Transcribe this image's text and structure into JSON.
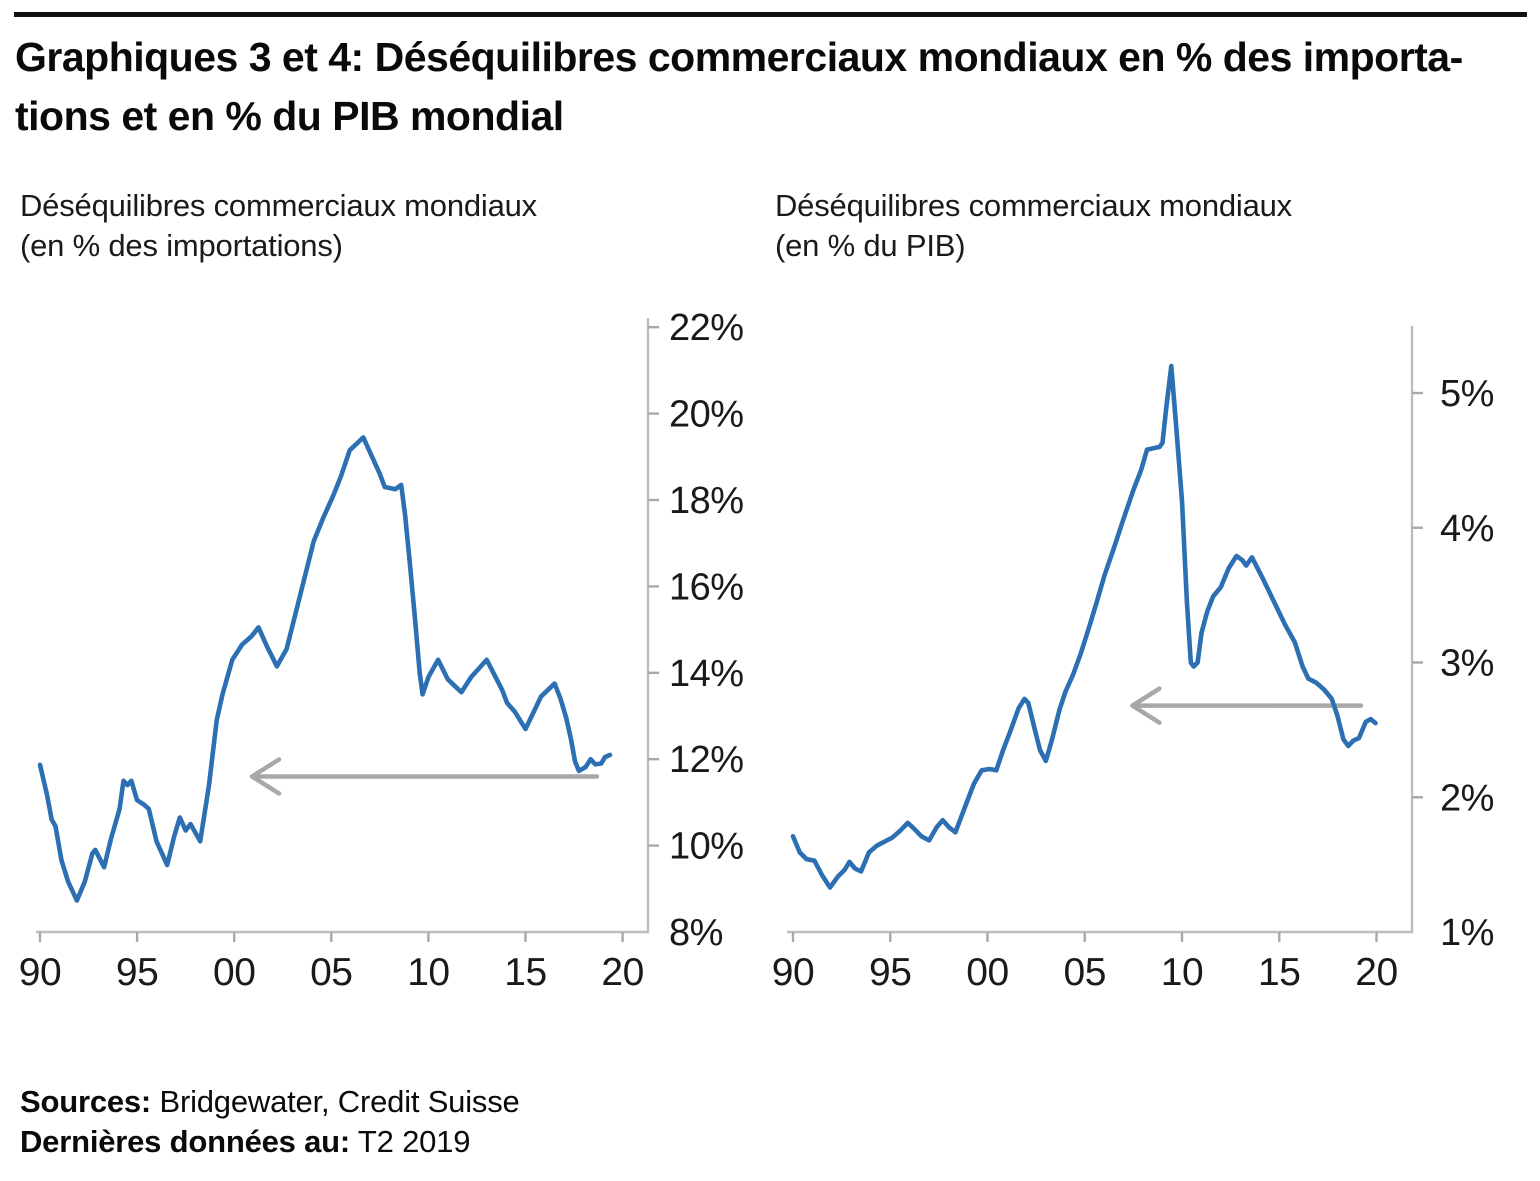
{
  "header": {
    "title_line1": "Graphiques 3 et 4: Déséquilibres commerciaux mondiaux en % des importa-",
    "title_line2": "tions et en % du PIB mondial"
  },
  "footer": {
    "sources_label": "Sources:",
    "sources_value": " Bridgewater, Credit Suisse",
    "last_data_label": "Dernières données au:",
    "last_data_value": " T2 2019"
  },
  "colors": {
    "line": "#2c6fb2",
    "axis": "#bdbdbd",
    "tick": "#a9a9a9",
    "arrow": "#a8a8a8",
    "label": "#1a1a1a"
  },
  "chart_data": [
    {
      "type": "line",
      "title_line1": "Déséquilibres commerciaux mondiaux",
      "title_line2": "(en % des importations)",
      "unit": "%",
      "xlim": [
        1990,
        2021.3
      ],
      "ylim": [
        8,
        22
      ],
      "x_tick_years": [
        1990,
        1995,
        2000,
        2005,
        2010,
        2015,
        2020
      ],
      "x_tick_labels": [
        "90",
        "95",
        "00",
        "05",
        "10",
        "15",
        "20"
      ],
      "y_tick_values": [
        22,
        20,
        18,
        16,
        14,
        12,
        10,
        8
      ],
      "y_tick_labels": [
        "22%",
        "20%",
        "18%",
        "16%",
        "14%",
        "12%",
        "10%",
        "8%"
      ],
      "grid": false,
      "legend": "none",
      "arrow": {
        "value": 11.6,
        "tail_year": 2018.68,
        "tip_year": 2000.92,
        "direction": "left"
      },
      "points": [
        [
          1990.0,
          11.87
        ],
        [
          1990.35,
          11.2
        ],
        [
          1990.6,
          10.6
        ],
        [
          1990.8,
          10.45
        ],
        [
          1991.1,
          9.67
        ],
        [
          1991.45,
          9.16
        ],
        [
          1991.9,
          8.73
        ],
        [
          1992.3,
          9.16
        ],
        [
          1992.7,
          9.82
        ],
        [
          1992.85,
          9.9
        ],
        [
          1993.3,
          9.5
        ],
        [
          1993.65,
          10.15
        ],
        [
          1994.1,
          10.85
        ],
        [
          1994.3,
          11.5
        ],
        [
          1994.5,
          11.4
        ],
        [
          1994.7,
          11.5
        ],
        [
          1995.0,
          11.05
        ],
        [
          1995.35,
          10.95
        ],
        [
          1995.6,
          10.85
        ],
        [
          1996.0,
          10.1
        ],
        [
          1996.55,
          9.55
        ],
        [
          1996.9,
          10.2
        ],
        [
          1997.2,
          10.65
        ],
        [
          1997.5,
          10.35
        ],
        [
          1997.75,
          10.5
        ],
        [
          1998.25,
          10.1
        ],
        [
          1998.7,
          11.4
        ],
        [
          1999.1,
          12.9
        ],
        [
          1999.4,
          13.5
        ],
        [
          1999.9,
          14.3
        ],
        [
          2000.4,
          14.65
        ],
        [
          2000.9,
          14.85
        ],
        [
          2001.25,
          15.05
        ],
        [
          2001.7,
          14.6
        ],
        [
          2002.2,
          14.15
        ],
        [
          2002.7,
          14.55
        ],
        [
          2003.4,
          15.8
        ],
        [
          2004.1,
          17.05
        ],
        [
          2004.6,
          17.6
        ],
        [
          2005.1,
          18.1
        ],
        [
          2005.5,
          18.55
        ],
        [
          2005.95,
          19.15
        ],
        [
          2006.3,
          19.3
        ],
        [
          2006.65,
          19.45
        ],
        [
          2007.2,
          18.9
        ],
        [
          2007.5,
          18.6
        ],
        [
          2007.75,
          18.3
        ],
        [
          2008.3,
          18.25
        ],
        [
          2008.6,
          18.35
        ],
        [
          2008.8,
          17.65
        ],
        [
          2009.05,
          16.5
        ],
        [
          2009.3,
          15.3
        ],
        [
          2009.55,
          14.0
        ],
        [
          2009.7,
          13.5
        ],
        [
          2010.0,
          13.9
        ],
        [
          2010.5,
          14.3
        ],
        [
          2011.0,
          13.85
        ],
        [
          2011.35,
          13.7
        ],
        [
          2011.7,
          13.55
        ],
        [
          2012.2,
          13.9
        ],
        [
          2012.6,
          14.1
        ],
        [
          2013.0,
          14.3
        ],
        [
          2013.8,
          13.6
        ],
        [
          2014.05,
          13.3
        ],
        [
          2014.45,
          13.1
        ],
        [
          2015.0,
          12.7
        ],
        [
          2015.8,
          13.45
        ],
        [
          2016.5,
          13.75
        ],
        [
          2016.8,
          13.4
        ],
        [
          2017.1,
          12.95
        ],
        [
          2017.35,
          12.45
        ],
        [
          2017.55,
          11.95
        ],
        [
          2017.75,
          11.73
        ],
        [
          2018.1,
          11.82
        ],
        [
          2018.35,
          12.0
        ],
        [
          2018.6,
          11.88
        ],
        [
          2018.9,
          11.9
        ],
        [
          2019.1,
          12.05
        ],
        [
          2019.35,
          12.1
        ]
      ]
    },
    {
      "type": "line",
      "title_line1": "Déséquilibres commerciaux mondiaux",
      "title_line2": "(en % du PIB)",
      "unit": "%",
      "xlim": [
        1990,
        2021.3
      ],
      "ylim": [
        1,
        5.5
      ],
      "x_tick_years": [
        1990,
        1995,
        2000,
        2005,
        2010,
        2015,
        2020
      ],
      "x_tick_labels": [
        "90",
        "95",
        "00",
        "05",
        "10",
        "15",
        "20"
      ],
      "y_tick_values": [
        5,
        4,
        3,
        2,
        1
      ],
      "y_tick_labels": [
        "5%",
        "4%",
        "3%",
        "2%",
        "1%"
      ],
      "grid": false,
      "legend": "none",
      "arrow": {
        "value": 2.68,
        "tail_year": 2019.2,
        "tip_year": 2007.45,
        "direction": "left"
      },
      "points": [
        [
          1990.0,
          1.71
        ],
        [
          1990.35,
          1.59
        ],
        [
          1990.7,
          1.54
        ],
        [
          1991.1,
          1.53
        ],
        [
          1991.5,
          1.42
        ],
        [
          1991.9,
          1.33
        ],
        [
          1992.3,
          1.41
        ],
        [
          1992.65,
          1.46
        ],
        [
          1992.9,
          1.52
        ],
        [
          1993.2,
          1.47
        ],
        [
          1993.5,
          1.45
        ],
        [
          1993.9,
          1.59
        ],
        [
          1994.3,
          1.64
        ],
        [
          1994.7,
          1.67
        ],
        [
          1995.1,
          1.7
        ],
        [
          1995.5,
          1.75
        ],
        [
          1995.9,
          1.81
        ],
        [
          1996.2,
          1.77
        ],
        [
          1996.6,
          1.71
        ],
        [
          1997.0,
          1.68
        ],
        [
          1997.4,
          1.78
        ],
        [
          1997.7,
          1.83
        ],
        [
          1998.0,
          1.78
        ],
        [
          1998.35,
          1.74
        ],
        [
          1998.9,
          1.95
        ],
        [
          1999.3,
          2.1
        ],
        [
          1999.7,
          2.2
        ],
        [
          2000.1,
          2.21
        ],
        [
          2000.45,
          2.2
        ],
        [
          2000.8,
          2.35
        ],
        [
          2001.2,
          2.5
        ],
        [
          2001.6,
          2.66
        ],
        [
          2001.9,
          2.73
        ],
        [
          2002.1,
          2.7
        ],
        [
          2002.4,
          2.52
        ],
        [
          2002.7,
          2.35
        ],
        [
          2003.0,
          2.27
        ],
        [
          2003.3,
          2.42
        ],
        [
          2003.7,
          2.65
        ],
        [
          2004.0,
          2.78
        ],
        [
          2004.4,
          2.91
        ],
        [
          2004.8,
          3.07
        ],
        [
          2005.2,
          3.25
        ],
        [
          2005.6,
          3.44
        ],
        [
          2006.0,
          3.64
        ],
        [
          2006.5,
          3.85
        ],
        [
          2007.0,
          4.07
        ],
        [
          2007.5,
          4.28
        ],
        [
          2007.9,
          4.43
        ],
        [
          2008.2,
          4.58
        ],
        [
          2008.85,
          4.6
        ],
        [
          2009.0,
          4.63
        ],
        [
          2009.2,
          4.9
        ],
        [
          2009.45,
          5.2
        ],
        [
          2009.7,
          4.75
        ],
        [
          2010.0,
          4.2
        ],
        [
          2010.25,
          3.45
        ],
        [
          2010.45,
          3.0
        ],
        [
          2010.6,
          2.97
        ],
        [
          2010.8,
          3.0
        ],
        [
          2011.0,
          3.22
        ],
        [
          2011.3,
          3.38
        ],
        [
          2011.6,
          3.49
        ],
        [
          2012.0,
          3.56
        ],
        [
          2012.4,
          3.7
        ],
        [
          2012.8,
          3.79
        ],
        [
          2013.1,
          3.76
        ],
        [
          2013.3,
          3.72
        ],
        [
          2013.6,
          3.78
        ],
        [
          2014.1,
          3.64
        ],
        [
          2014.5,
          3.52
        ],
        [
          2014.9,
          3.4
        ],
        [
          2015.3,
          3.28
        ],
        [
          2015.8,
          3.15
        ],
        [
          2016.2,
          2.97
        ],
        [
          2016.5,
          2.88
        ],
        [
          2016.9,
          2.85
        ],
        [
          2017.3,
          2.8
        ],
        [
          2017.7,
          2.73
        ],
        [
          2018.0,
          2.6
        ],
        [
          2018.3,
          2.43
        ],
        [
          2018.55,
          2.38
        ],
        [
          2018.8,
          2.42
        ],
        [
          2019.1,
          2.44
        ],
        [
          2019.45,
          2.56
        ],
        [
          2019.7,
          2.58
        ],
        [
          2019.95,
          2.55
        ]
      ]
    }
  ]
}
